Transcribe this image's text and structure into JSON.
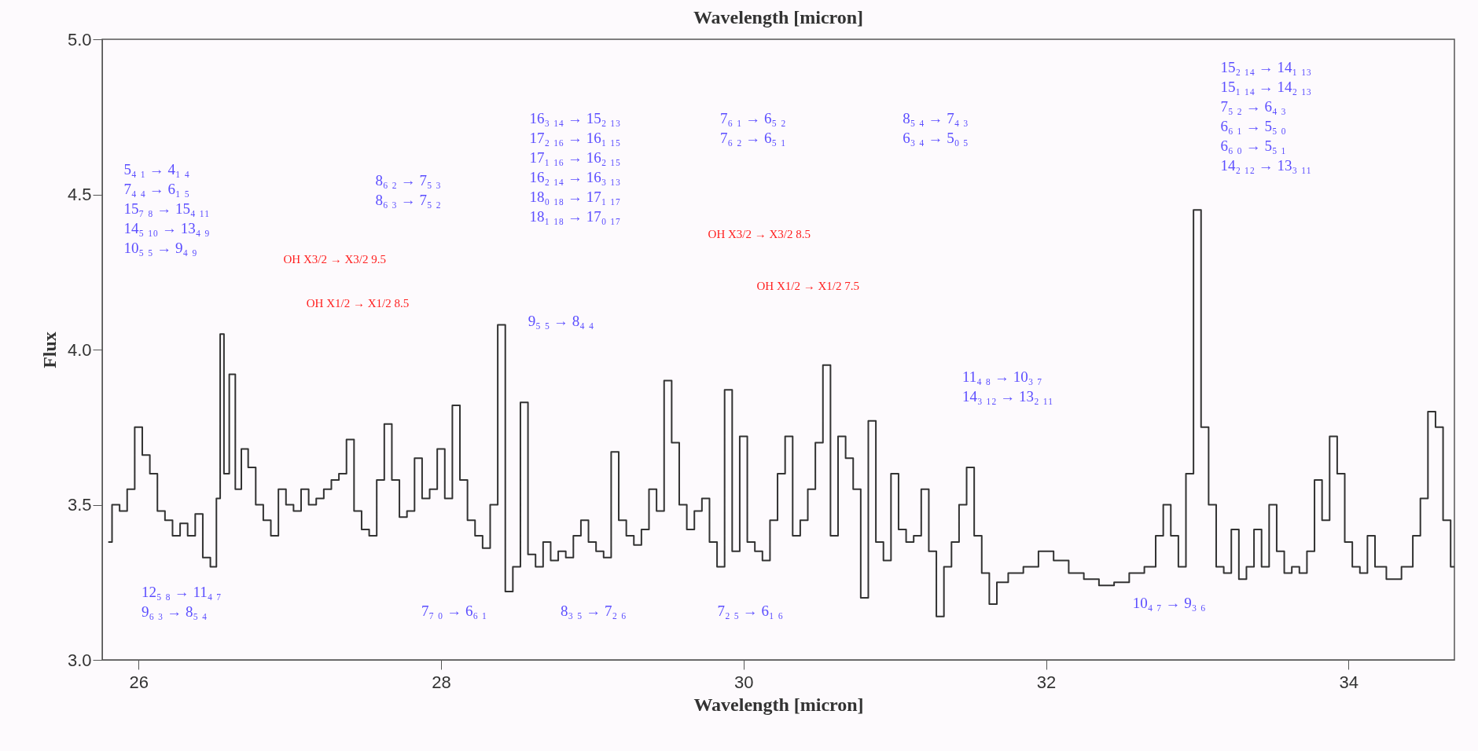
{
  "chart_data": {
    "type": "step",
    "xlabel": "Wavelength [micron]",
    "ylabel": "Flux",
    "x2label": "Wavelength [micron]",
    "xlim": [
      25.76,
      34.7
    ],
    "ylim": [
      3.0,
      5.0
    ],
    "xticks": [
      26,
      28,
      30,
      32,
      34
    ],
    "yticks": [
      {
        "value": 3,
        "label": "3.0"
      },
      {
        "value": 3.5,
        "label": "3.5"
      },
      {
        "value": 4,
        "label": "4.0"
      },
      {
        "value": 4.5,
        "label": "4.5"
      },
      {
        "value": 5,
        "label": "5.0"
      }
    ],
    "grid": false,
    "x": [
      25.8,
      25.85,
      25.9,
      25.95,
      26.0,
      26.05,
      26.1,
      26.15,
      26.2,
      26.25,
      26.3,
      26.35,
      26.4,
      26.45,
      26.5,
      26.53,
      26.55,
      26.58,
      26.62,
      26.66,
      26.7,
      26.75,
      26.8,
      26.85,
      26.9,
      26.95,
      27.0,
      27.05,
      27.1,
      27.15,
      27.2,
      27.25,
      27.3,
      27.35,
      27.4,
      27.45,
      27.5,
      27.55,
      27.6,
      27.65,
      27.7,
      27.75,
      27.8,
      27.85,
      27.9,
      27.95,
      28.0,
      28.05,
      28.1,
      28.15,
      28.2,
      28.25,
      28.3,
      28.35,
      28.4,
      28.45,
      28.5,
      28.55,
      28.6,
      28.65,
      28.7,
      28.75,
      28.8,
      28.85,
      28.9,
      28.95,
      29.0,
      29.05,
      29.1,
      29.15,
      29.2,
      29.25,
      29.3,
      29.35,
      29.4,
      29.45,
      29.5,
      29.55,
      29.6,
      29.65,
      29.7,
      29.75,
      29.8,
      29.85,
      29.9,
      29.95,
      30.0,
      30.05,
      30.1,
      30.15,
      30.2,
      30.25,
      30.3,
      30.35,
      30.4,
      30.45,
      30.5,
      30.55,
      30.6,
      30.65,
      30.7,
      30.75,
      30.8,
      30.85,
      30.9,
      30.95,
      31.0,
      31.05,
      31.1,
      31.15,
      31.2,
      31.25,
      31.3,
      31.35,
      31.4,
      31.45,
      31.5,
      31.55,
      31.6,
      31.65,
      31.7,
      31.8,
      31.9,
      32.0,
      32.1,
      32.2,
      32.3,
      32.4,
      32.5,
      32.6,
      32.7,
      32.75,
      32.8,
      32.85,
      32.9,
      32.95,
      33.0,
      33.05,
      33.1,
      33.15,
      33.2,
      33.25,
      33.3,
      33.35,
      33.4,
      33.45,
      33.5,
      33.55,
      33.6,
      33.65,
      33.7,
      33.75,
      33.8,
      33.85,
      33.9,
      33.95,
      34.0,
      34.05,
      34.1,
      34.15,
      34.2,
      34.3,
      34.4,
      34.45,
      34.5,
      34.55,
      34.6,
      34.65,
      34.7
    ],
    "series": [
      {
        "color": "#333333",
        "values": [
          3.38,
          3.5,
          3.48,
          3.55,
          3.75,
          3.66,
          3.6,
          3.48,
          3.45,
          3.4,
          3.44,
          3.4,
          3.47,
          3.33,
          3.3,
          3.52,
          4.05,
          3.6,
          3.92,
          3.55,
          3.68,
          3.62,
          3.5,
          3.45,
          3.4,
          3.55,
          3.5,
          3.48,
          3.55,
          3.5,
          3.52,
          3.55,
          3.58,
          3.6,
          3.71,
          3.48,
          3.42,
          3.4,
          3.58,
          3.76,
          3.58,
          3.46,
          3.48,
          3.65,
          3.52,
          3.55,
          3.68,
          3.52,
          3.82,
          3.58,
          3.45,
          3.4,
          3.36,
          3.5,
          4.08,
          3.22,
          3.3,
          3.83,
          3.34,
          3.3,
          3.38,
          3.32,
          3.35,
          3.33,
          3.4,
          3.45,
          3.38,
          3.35,
          3.33,
          3.67,
          3.45,
          3.4,
          3.37,
          3.42,
          3.55,
          3.48,
          3.9,
          3.7,
          3.5,
          3.42,
          3.48,
          3.52,
          3.38,
          3.3,
          3.87,
          3.35,
          3.72,
          3.38,
          3.35,
          3.32,
          3.45,
          3.6,
          3.72,
          3.4,
          3.45,
          3.55,
          3.7,
          3.95,
          3.4,
          3.72,
          3.65,
          3.55,
          3.2,
          3.77,
          3.38,
          3.32,
          3.6,
          3.42,
          3.38,
          3.4,
          3.55,
          3.35,
          3.14,
          3.3,
          3.38,
          3.5,
          3.62,
          3.4,
          3.28,
          3.18,
          3.25,
          3.28,
          3.3,
          3.35,
          3.32,
          3.28,
          3.26,
          3.24,
          3.25,
          3.28,
          3.3,
          3.4,
          3.5,
          3.4,
          3.3,
          3.6,
          4.45,
          3.75,
          3.5,
          3.3,
          3.28,
          3.42,
          3.26,
          3.3,
          3.42,
          3.3,
          3.5,
          3.35,
          3.28,
          3.3,
          3.28,
          3.35,
          3.58,
          3.45,
          3.72,
          3.6,
          3.38,
          3.3,
          3.28,
          3.4,
          3.3,
          3.26,
          3.3,
          3.4,
          3.52,
          3.8,
          3.75,
          3.45,
          3.3
        ]
      }
    ],
    "annotations": [
      "5₄ ₁ → 4₁ ₄\n7₄ ₄ → 6₁ ₅\n15₇ ₈ → 15₄ ₁₁\n14₅ ₁₀ → 13₄ ₉\n10₅ ₅ → 9₄ ₉",
      "OH X3/2 → X3/2 9.5",
      "OH X1/2 → X1/2 8.5",
      "8₆ ₂ → 7₅ ₃\n8₆ ₃ → 7₅ ₂",
      "16₃ ₁₄ → 15₂ ₁₃\n17₂ ₁₆ → 16₁ ₁₅\n17₁ ₁₆ → 16₂ ₁₅\n16₂ ₁₄ → 16₃ ₁₃\n18₀ ₁₈ → 17₁ ₁₇\n18₁ ₁₈ → 17₀ ₁₇",
      "9₅ ₅ → 8₄ ₄",
      "OH X3/2 → X3/2 8.5",
      "7₆ ₁ → 6₅ ₂\n7₆ ₂ → 6₅ ₁",
      "OH X1/2 → X1/2 7.5",
      "8₅ ₄ → 7₄ ₃\n6₃ ₄ → 5₀ ₅",
      "11₄ ₈ → 10₃ ₇\n14₃ ₁₂ → 13₂ ₁₁",
      "15₂ ₁₄ → 14₁ ₁₃\n15₁ ₁₄ → 14₂ ₁₃\n7₅ ₂ → 6₄ ₃\n6₆ ₁ → 5₅ ₀\n6₆ ₀ → 5₅ ₁\n14₂ ₁₂ → 13₃ ₁₁",
      "12₅ ₈ → 11₄ ₇\n9₆ ₃ → 8₅ ₄",
      "7₇ ₀ → 6₆ ₁",
      "8₃ ₅ → 7₂ ₆",
      "7₂ ₅ → 6₁ ₆",
      "10₄ ₇ → 9₃ ₆"
    ]
  }
}
